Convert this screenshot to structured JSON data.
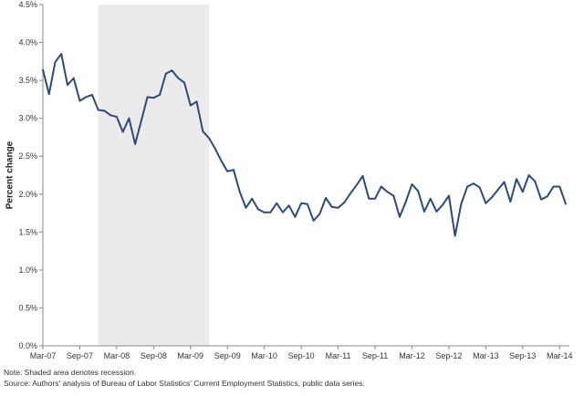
{
  "chart_data": {
    "type": "line",
    "ylabel": "Percent change",
    "ylim": [
      0.0,
      4.5
    ],
    "yticks": [
      "0.0%",
      "0.5%",
      "1.0%",
      "1.5%",
      "2.0%",
      "2.5%",
      "3.0%",
      "3.5%",
      "4.0%",
      "4.5%"
    ],
    "xticks": [
      "Mar-07",
      "Sep-07",
      "Mar-08",
      "Sep-08",
      "Mar-09",
      "Sep-09",
      "Mar-10",
      "Sep-10",
      "Mar-11",
      "Sep-11",
      "Mar-12",
      "Sep-12",
      "Mar-13",
      "Sep-13",
      "Mar-14"
    ],
    "x_start": "Mar-07",
    "x_end": "Mar-14",
    "grid": false,
    "recession_shading": {
      "from": "Dec-07",
      "to": "Jun-09",
      "color": "#ebebeb"
    },
    "series": [
      {
        "color": "#2b4a7e",
        "values": [
          3.64,
          3.32,
          3.74,
          3.85,
          3.44,
          3.53,
          3.23,
          3.28,
          3.31,
          3.11,
          3.1,
          3.04,
          3.02,
          2.82,
          3.0,
          2.66,
          2.97,
          3.28,
          3.27,
          3.31,
          3.59,
          3.63,
          3.53,
          3.47,
          3.17,
          3.22,
          2.83,
          2.74,
          2.6,
          2.44,
          2.3,
          2.32,
          2.03,
          1.82,
          1.94,
          1.8,
          1.76,
          1.76,
          1.88,
          1.76,
          1.85,
          1.7,
          1.88,
          1.87,
          1.65,
          1.74,
          1.95,
          1.83,
          1.82,
          1.89,
          2.01,
          2.12,
          2.24,
          1.94,
          1.94,
          2.1,
          2.03,
          1.98,
          1.7,
          1.9,
          2.13,
          2.04,
          1.77,
          1.94,
          1.77,
          1.86,
          1.98,
          1.45,
          1.87,
          2.1,
          2.14,
          2.09,
          1.88,
          1.96,
          2.06,
          2.16,
          1.9,
          2.2,
          2.03,
          2.25,
          2.17,
          1.93,
          1.97,
          2.1,
          2.1,
          1.87
        ]
      }
    ]
  },
  "notes": {
    "note": "Note: Shaded area denotes recession.",
    "source": "Source: Authors' analysis of Bureau of Labor Statistics' Current Employment Statistics, public data series."
  }
}
